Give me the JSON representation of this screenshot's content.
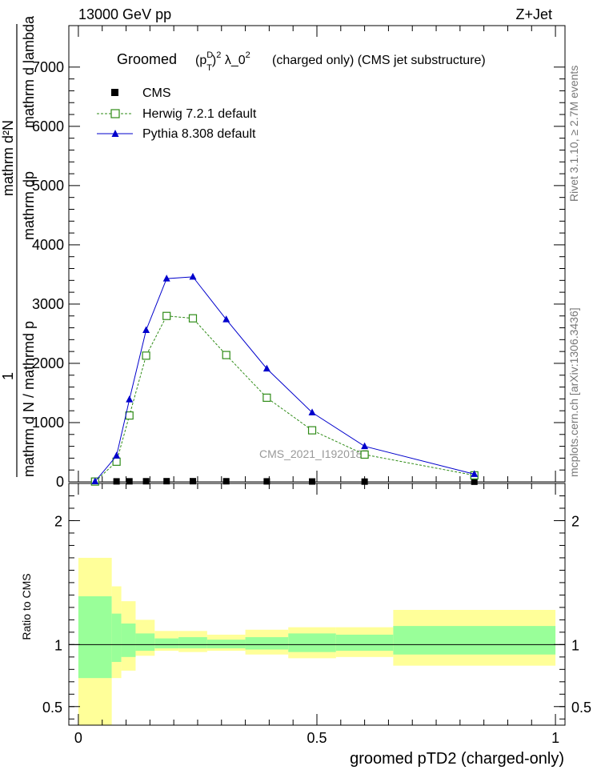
{
  "header": {
    "left": "13000 GeV pp",
    "right": "Z+Jet"
  },
  "side": {
    "rivet": "Rivet 3.1.10, ≥ 2.7M events",
    "mcplots": "mcplots.cern.ch [arXiv:1306.3436]"
  },
  "watermark": "CMS_2021_I1920187",
  "main_title": {
    "prefix": "Groomed",
    "rest": "(charged only) (CMS jet substructure)"
  },
  "ylabel_top": {
    "one": "1",
    "numer": "mathrm d N / mathrmd p",
    "denom": "mathrm d²N",
    "extra": "mathrm dp",
    "extra2": "mathrm d lambda"
  },
  "ratio_ylabel": "Ratio to CMS",
  "xlabel": "groomed pTD2 (charged-only)",
  "legend": [
    {
      "label": "CMS",
      "color": "#000000",
      "marker": "square-filled"
    },
    {
      "label": "Herwig 7.2.1 default",
      "color": "#2e8b16",
      "marker": "square-open"
    },
    {
      "label": "Pythia 8.308 default",
      "color": "#0000cc",
      "marker": "triangle"
    }
  ],
  "chart_data": {
    "type": "line",
    "x_range": [
      -0.02,
      1.02
    ],
    "main": {
      "ylim": [
        0,
        7700
      ],
      "yticks": [
        {
          "v": 0,
          "label": "0"
        },
        {
          "v": 1000,
          "label": "1000"
        },
        {
          "v": 2000,
          "label": "2000"
        },
        {
          "v": 3000,
          "label": "3000"
        },
        {
          "v": 4000,
          "label": "4000"
        },
        {
          "v": 5000,
          "label": "5000"
        },
        {
          "v": 6000,
          "label": "6000"
        },
        {
          "v": 7000,
          "label": "7000"
        }
      ],
      "series": [
        {
          "name": "CMS",
          "color": "#000000",
          "x": [
            0.035,
            0.08,
            0.107,
            0.142,
            0.185,
            0.24,
            0.31,
            0.395,
            0.49,
            0.6,
            0.83
          ],
          "y": [
            6,
            8,
            9,
            10,
            11,
            11,
            10,
            8,
            6,
            4,
            2
          ]
        },
        {
          "name": "Herwig 7.2.1 default",
          "color": "#2e8b16",
          "x": [
            0.035,
            0.08,
            0.107,
            0.142,
            0.185,
            0.24,
            0.31,
            0.395,
            0.49,
            0.6,
            0.83
          ],
          "y": [
            5,
            340,
            1120,
            2130,
            2800,
            2760,
            2140,
            1420,
            870,
            460,
            110
          ]
        },
        {
          "name": "Pythia 8.308 default",
          "color": "#0000cc",
          "x": [
            0.035,
            0.08,
            0.107,
            0.142,
            0.185,
            0.24,
            0.31,
            0.395,
            0.49,
            0.6,
            0.83
          ],
          "y": [
            6,
            440,
            1390,
            2560,
            3430,
            3460,
            2740,
            1910,
            1170,
            600,
            130
          ]
        }
      ]
    },
    "ratio": {
      "ylim": [
        0.35,
        2.3
      ],
      "yticks": [
        {
          "v": 0.5,
          "label": "0.5"
        },
        {
          "v": 1,
          "label": "1"
        },
        {
          "v": 2,
          "label": "2"
        }
      ],
      "xticks": [
        {
          "v": 0,
          "label": "0"
        },
        {
          "v": 0.5,
          "label": "0.5"
        },
        {
          "v": 1,
          "label": "1"
        }
      ],
      "bands": [
        {
          "x0": 0.0,
          "x1": 0.07,
          "inner": [
            0.73,
            1.39
          ],
          "outer": [
            0.35,
            1.7
          ]
        },
        {
          "x0": 0.07,
          "x1": 0.09,
          "inner": [
            0.86,
            1.25
          ],
          "outer": [
            0.73,
            1.47
          ]
        },
        {
          "x0": 0.09,
          "x1": 0.12,
          "inner": [
            0.9,
            1.17
          ],
          "outer": [
            0.79,
            1.35
          ]
        },
        {
          "x0": 0.12,
          "x1": 0.16,
          "inner": [
            0.95,
            1.09
          ],
          "outer": [
            0.91,
            1.2
          ]
        },
        {
          "x0": 0.16,
          "x1": 0.21,
          "inner": [
            0.97,
            1.05
          ],
          "outer": [
            0.95,
            1.11
          ]
        },
        {
          "x0": 0.21,
          "x1": 0.27,
          "inner": [
            0.97,
            1.06
          ],
          "outer": [
            0.94,
            1.11
          ]
        },
        {
          "x0": 0.27,
          "x1": 0.35,
          "inner": [
            0.97,
            1.04
          ],
          "outer": [
            0.95,
            1.08
          ]
        },
        {
          "x0": 0.35,
          "x1": 0.44,
          "inner": [
            0.96,
            1.06
          ],
          "outer": [
            0.92,
            1.12
          ]
        },
        {
          "x0": 0.44,
          "x1": 0.54,
          "inner": [
            0.94,
            1.09
          ],
          "outer": [
            0.89,
            1.14
          ]
        },
        {
          "x0": 0.54,
          "x1": 0.66,
          "inner": [
            0.95,
            1.08
          ],
          "outer": [
            0.9,
            1.14
          ]
        },
        {
          "x0": 0.66,
          "x1": 1.0,
          "inner": [
            0.92,
            1.15
          ],
          "outer": [
            0.83,
            1.28
          ]
        }
      ]
    },
    "band_colors": {
      "inner": "#99ff99",
      "outer": "#ffff99"
    }
  }
}
